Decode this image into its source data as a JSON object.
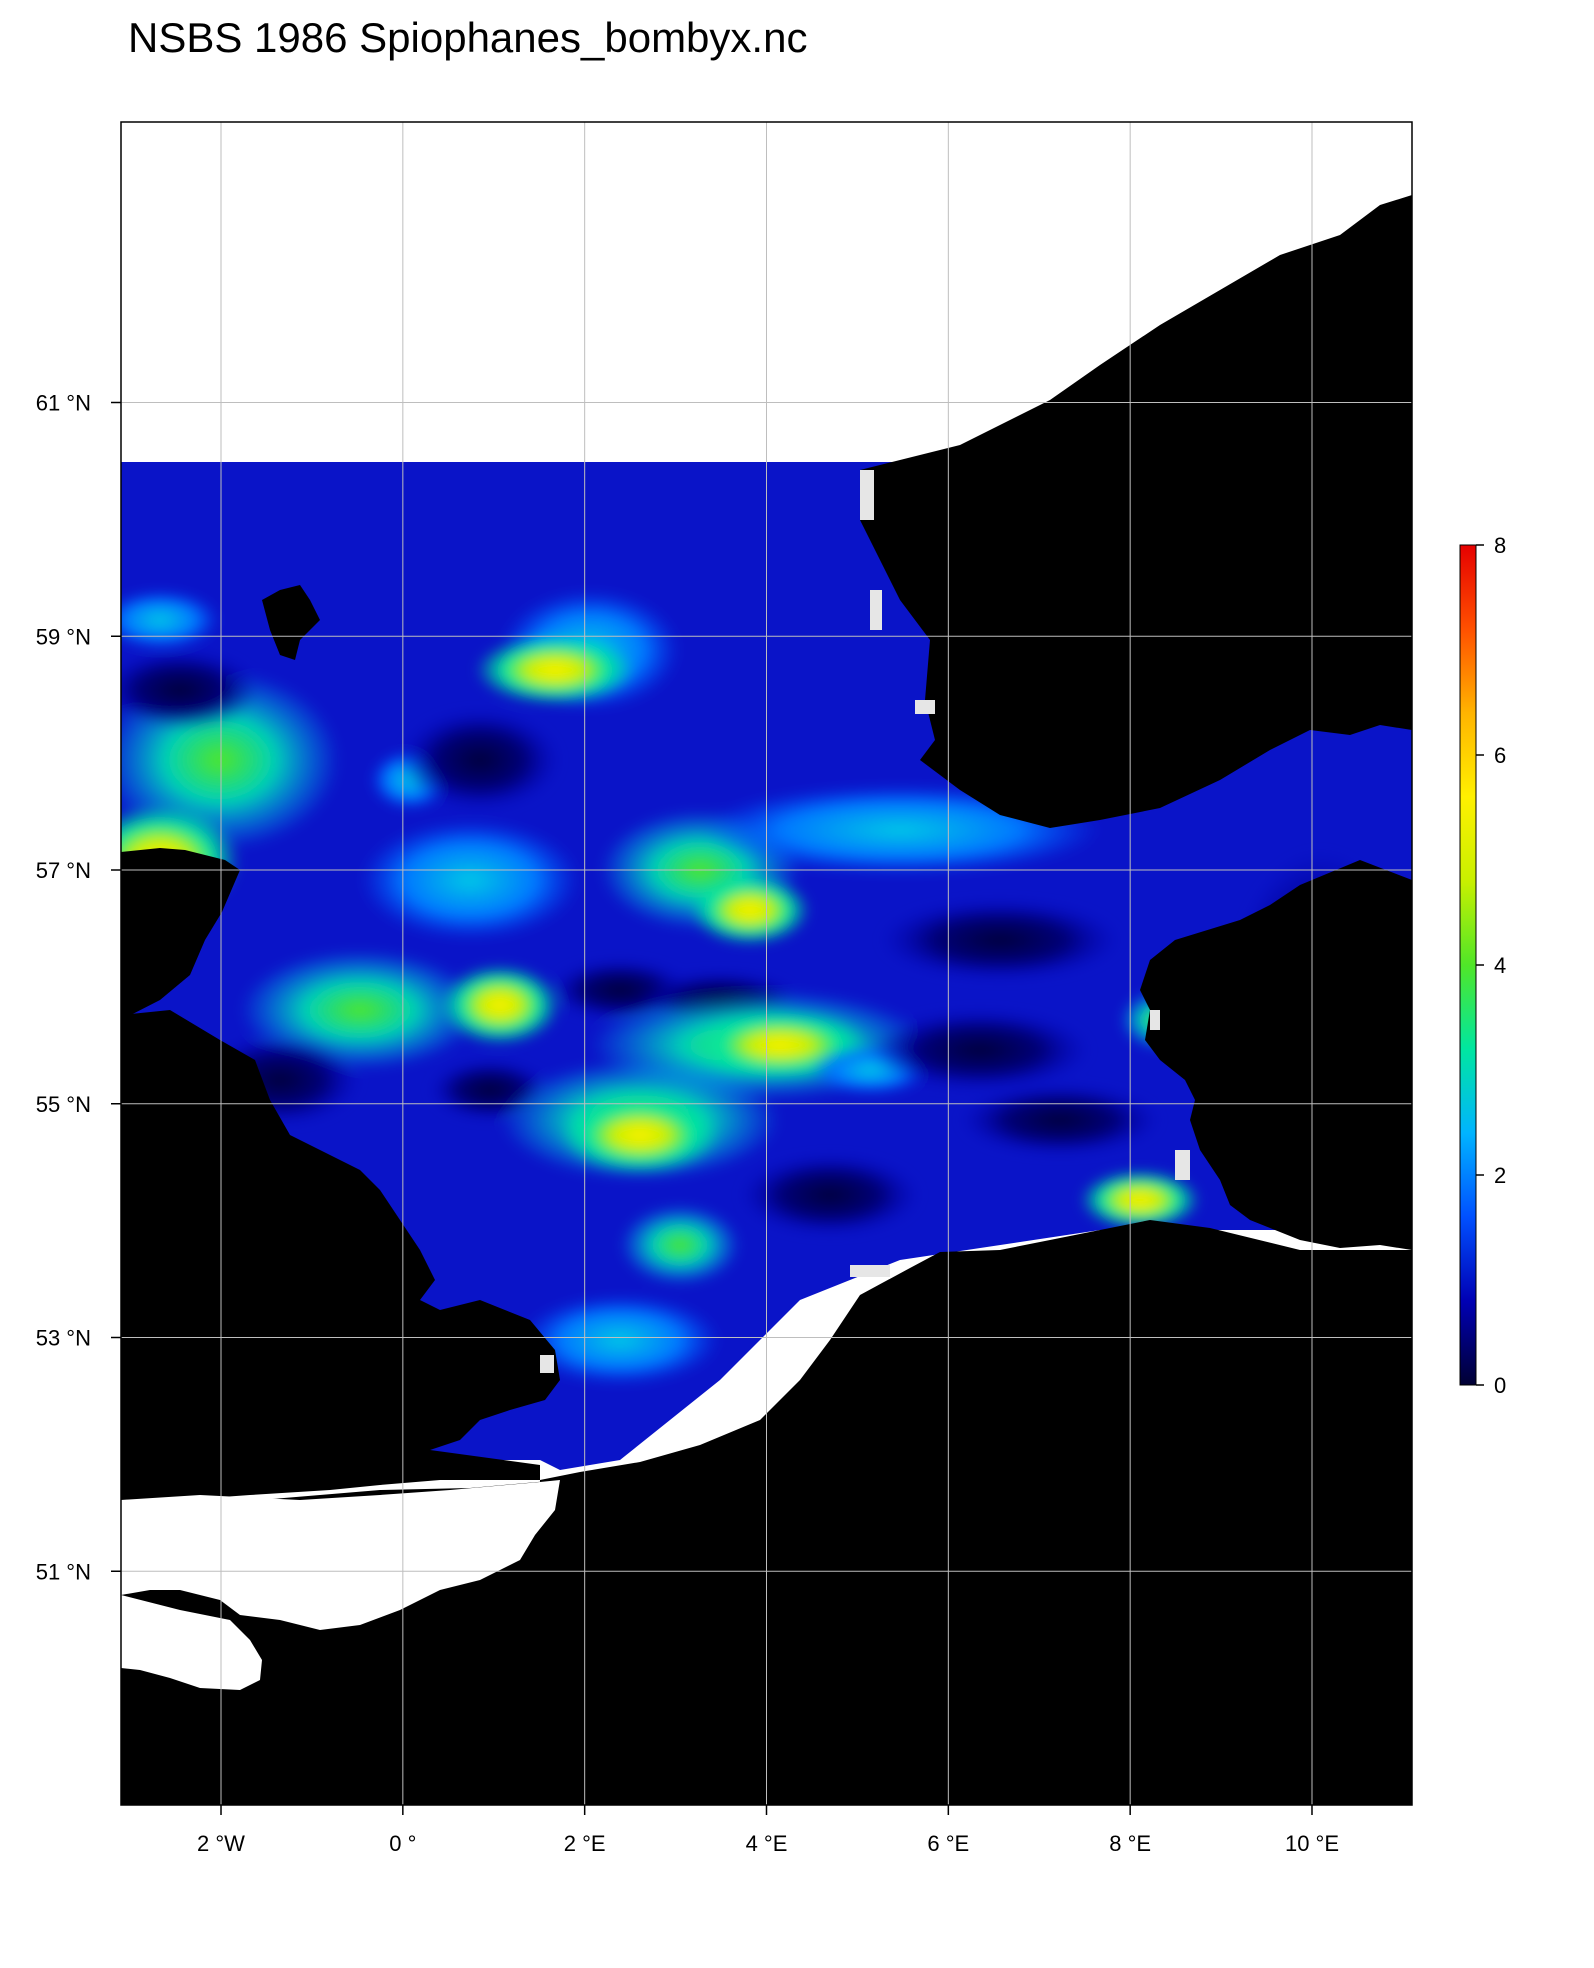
{
  "title": "NSBS 1986 Spiophanes_bombyx.nc",
  "axes": {
    "lon_ticks": [
      {
        "value": -2,
        "label": "2 °W"
      },
      {
        "value": 0,
        "label": "0 °"
      },
      {
        "value": 2,
        "label": "2 °E"
      },
      {
        "value": 4,
        "label": "4 °E"
      },
      {
        "value": 6,
        "label": "6 °E"
      },
      {
        "value": 8,
        "label": "8 °E"
      },
      {
        "value": 10,
        "label": "10 °E"
      }
    ],
    "lat_ticks": [
      {
        "value": 61,
        "label": "61 °N"
      },
      {
        "value": 59,
        "label": "59 °N"
      },
      {
        "value": 57,
        "label": "57 °N"
      },
      {
        "value": 55,
        "label": "55 °N"
      },
      {
        "value": 53,
        "label": "53 °N"
      },
      {
        "value": 51,
        "label": "51 °N"
      }
    ],
    "lon_range": [
      -3.1,
      11.1
    ],
    "lat_range": [
      49.0,
      63.4
    ],
    "grid": true
  },
  "legend": {
    "position": "right",
    "min": 0,
    "max": 8,
    "ticks": [
      {
        "value": 0,
        "label": "0"
      },
      {
        "value": 2,
        "label": "2"
      },
      {
        "value": 4,
        "label": "4"
      },
      {
        "value": 6,
        "label": "6"
      },
      {
        "value": 8,
        "label": "8"
      }
    ],
    "colors": [
      "#000033",
      "#0000b4",
      "#0050ff",
      "#00b4ff",
      "#00e6a0",
      "#50e628",
      "#c8f000",
      "#fff000",
      "#ffb400",
      "#ff5000",
      "#e60000"
    ]
  },
  "colors": {
    "land": "#000000",
    "no_data_sea": "#ffffff",
    "missing_cells": "#e6e6e6",
    "grid": "#bebebe"
  }
}
